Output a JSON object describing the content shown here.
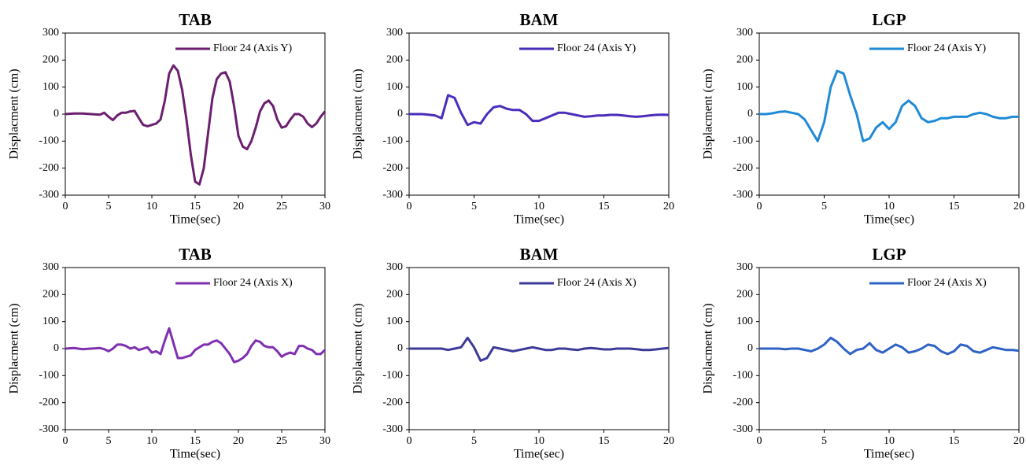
{
  "chart_data": [
    {
      "type": "line",
      "title": "TAB",
      "xlabel": "Time(sec)",
      "ylabel": "Displacment (cm)",
      "legend": "upper right",
      "x": [
        0,
        1,
        2,
        3,
        4,
        4.5,
        5,
        5.5,
        6,
        6.5,
        7,
        7.5,
        8,
        8.5,
        9,
        9.5,
        10,
        10.5,
        11,
        11.5,
        12,
        12.5,
        13,
        13.5,
        14,
        14.5,
        15,
        15.5,
        16,
        16.5,
        17,
        17.5,
        18,
        18.5,
        19,
        19.5,
        20,
        20.5,
        21,
        21.5,
        22,
        22.5,
        23,
        23.5,
        24,
        24.5,
        25,
        25.5,
        26,
        26.5,
        27,
        27.5,
        28,
        28.5,
        29,
        29.5,
        30
      ],
      "series": [
        {
          "name": "Floor 24 (Axis Y)",
          "color": "#6b1f6e",
          "values": [
            0,
            2,
            2,
            0,
            -2,
            5,
            -10,
            -22,
            -5,
            5,
            5,
            10,
            12,
            -15,
            -40,
            -45,
            -40,
            -35,
            -20,
            50,
            150,
            180,
            160,
            90,
            -20,
            -150,
            -250,
            -260,
            -200,
            -70,
            60,
            130,
            150,
            155,
            120,
            30,
            -80,
            -120,
            -130,
            -100,
            -50,
            10,
            40,
            50,
            30,
            -20,
            -50,
            -45,
            -20,
            0,
            0,
            -10,
            -35,
            -48,
            -35,
            -10,
            10
          ]
        }
      ],
      "xlim": [
        0,
        30
      ],
      "xticks": [
        0,
        5,
        10,
        15,
        20,
        25,
        30
      ],
      "ylim": [
        -300,
        300
      ],
      "yticks": [
        -300,
        -200,
        -100,
        0,
        100,
        200,
        300
      ]
    },
    {
      "type": "line",
      "title": "BAM",
      "xlabel": "Time(sec)",
      "ylabel": "Displacment (cm)",
      "legend": "upper right",
      "x": [
        0,
        0.5,
        1,
        1.5,
        2,
        2.5,
        3,
        3.5,
        4,
        4.5,
        5,
        5.5,
        6,
        6.5,
        7,
        7.5,
        8,
        8.5,
        9,
        9.5,
        10,
        10.5,
        11,
        11.5,
        12,
        12.5,
        13,
        13.5,
        14,
        14.5,
        15,
        15.5,
        16,
        16.5,
        17,
        17.5,
        18,
        18.5,
        19,
        19.5,
        20
      ],
      "series": [
        {
          "name": "Floor 24 (Axis Y)",
          "color": "#4a2dbb",
          "values": [
            0,
            0,
            0,
            -2,
            -5,
            -15,
            70,
            60,
            5,
            -40,
            -30,
            -35,
            0,
            25,
            30,
            20,
            15,
            15,
            0,
            -25,
            -25,
            -15,
            -5,
            5,
            5,
            0,
            -5,
            -10,
            -8,
            -5,
            -5,
            -3,
            -3,
            -5,
            -8,
            -10,
            -8,
            -5,
            -3,
            -2,
            -3
          ]
        }
      ],
      "xlim": [
        0,
        20
      ],
      "xticks": [
        0,
        5,
        10,
        15,
        20
      ],
      "ylim": [
        -300,
        300
      ],
      "yticks": [
        -300,
        -200,
        -100,
        0,
        100,
        200,
        300
      ]
    },
    {
      "type": "line",
      "title": "LGP",
      "xlabel": "Time(sec)",
      "ylabel": "Displacment (cm)",
      "legend": "upper right",
      "x": [
        0,
        0.5,
        1,
        1.5,
        2,
        2.5,
        3,
        3.5,
        4,
        4.5,
        5,
        5.5,
        6,
        6.5,
        7,
        7.5,
        8,
        8.5,
        9,
        9.5,
        10,
        10.5,
        11,
        11.5,
        12,
        12.5,
        13,
        13.5,
        14,
        14.5,
        15,
        15.5,
        16,
        16.5,
        17,
        17.5,
        18,
        18.5,
        19,
        19.5,
        20
      ],
      "series": [
        {
          "name": "Floor 24 (Axis Y)",
          "color": "#1f8ad6",
          "values": [
            0,
            0,
            3,
            8,
            10,
            5,
            0,
            -20,
            -60,
            -100,
            -30,
            100,
            160,
            150,
            70,
            0,
            -100,
            -90,
            -50,
            -30,
            -55,
            -30,
            30,
            50,
            30,
            -15,
            -30,
            -25,
            -15,
            -15,
            -10,
            -10,
            -10,
            0,
            5,
            0,
            -10,
            -15,
            -15,
            -10,
            -10
          ]
        }
      ],
      "xlim": [
        0,
        20
      ],
      "xticks": [
        0,
        5,
        10,
        15,
        20
      ],
      "ylim": [
        -300,
        300
      ],
      "yticks": [
        -300,
        -200,
        -100,
        0,
        100,
        200,
        300
      ]
    },
    {
      "type": "line",
      "title": "TAB",
      "xlabel": "Time(sec)",
      "ylabel": "Displacment (cm)",
      "legend": "upper right",
      "x": [
        0,
        1,
        2,
        3,
        4,
        4.5,
        5,
        5.5,
        6,
        6.5,
        7,
        7.5,
        8,
        8.5,
        9,
        9.5,
        10,
        10.5,
        11,
        11.5,
        12,
        12.5,
        13,
        13.5,
        14,
        14.5,
        15,
        15.5,
        16,
        16.5,
        17,
        17.5,
        18,
        18.5,
        19,
        19.5,
        20,
        20.5,
        21,
        21.5,
        22,
        22.5,
        23,
        23.5,
        24,
        24.5,
        25,
        25.5,
        26,
        26.5,
        27,
        27.5,
        28,
        28.5,
        29,
        29.5,
        30
      ],
      "series": [
        {
          "name": "Floor 24 (Axis X)",
          "color": "#7f2fb0",
          "values": [
            0,
            2,
            -2,
            0,
            2,
            -2,
            -10,
            0,
            15,
            15,
            10,
            0,
            5,
            -5,
            0,
            5,
            -15,
            -10,
            -20,
            30,
            75,
            20,
            -35,
            -35,
            -30,
            -25,
            -5,
            5,
            15,
            15,
            25,
            30,
            20,
            0,
            -20,
            -50,
            -45,
            -35,
            -20,
            10,
            30,
            25,
            10,
            5,
            5,
            -10,
            -30,
            -20,
            -15,
            -20,
            10,
            10,
            0,
            -5,
            -20,
            -20,
            -5
          ]
        }
      ],
      "xlim": [
        0,
        30
      ],
      "xticks": [
        0,
        5,
        10,
        15,
        20,
        25,
        30
      ],
      "ylim": [
        -300,
        300
      ],
      "yticks": [
        -300,
        -200,
        -100,
        0,
        100,
        200,
        300
      ]
    },
    {
      "type": "line",
      "title": "BAM",
      "xlabel": "Time(sec)",
      "ylabel": "Displacment (cm)",
      "legend": "upper right",
      "x": [
        0,
        0.5,
        1,
        1.5,
        2,
        2.5,
        3,
        3.5,
        4,
        4.5,
        5,
        5.5,
        6,
        6.5,
        7,
        7.5,
        8,
        8.5,
        9,
        9.5,
        10,
        10.5,
        11,
        11.5,
        12,
        12.5,
        13,
        13.5,
        14,
        14.5,
        15,
        15.5,
        16,
        16.5,
        17,
        17.5,
        18,
        18.5,
        19,
        19.5,
        20
      ],
      "series": [
        {
          "name": "Floor 24 (Axis X)",
          "color": "#3c3a98",
          "values": [
            0,
            0,
            0,
            0,
            0,
            0,
            -5,
            0,
            5,
            40,
            5,
            -45,
            -35,
            5,
            0,
            -5,
            -10,
            -5,
            0,
            5,
            0,
            -5,
            -5,
            0,
            0,
            -3,
            -5,
            0,
            2,
            0,
            -3,
            -3,
            0,
            0,
            0,
            -2,
            -5,
            -5,
            -3,
            0,
            2
          ]
        }
      ],
      "xlim": [
        0,
        20
      ],
      "xticks": [
        0,
        5,
        10,
        15,
        20
      ],
      "ylim": [
        -300,
        300
      ],
      "yticks": [
        -300,
        -200,
        -100,
        0,
        100,
        200,
        300
      ]
    },
    {
      "type": "line",
      "title": "LGP",
      "xlabel": "Time(sec)",
      "ylabel": "Displacment (cm)",
      "legend": "upper right",
      "x": [
        0,
        0.5,
        1,
        1.5,
        2,
        2.5,
        3,
        3.5,
        4,
        4.5,
        5,
        5.5,
        6,
        6.5,
        7,
        7.5,
        8,
        8.5,
        9,
        9.5,
        10,
        10.5,
        11,
        11.5,
        12,
        12.5,
        13,
        13.5,
        14,
        14.5,
        15,
        15.5,
        16,
        16.5,
        17,
        17.5,
        18,
        18.5,
        19,
        19.5,
        20
      ],
      "series": [
        {
          "name": "Floor 24 (Axis X)",
          "color": "#2e62c4",
          "values": [
            0,
            0,
            0,
            0,
            -2,
            0,
            0,
            -5,
            -10,
            0,
            15,
            40,
            25,
            0,
            -20,
            -5,
            0,
            20,
            -5,
            -15,
            0,
            15,
            5,
            -15,
            -10,
            0,
            15,
            10,
            -10,
            -20,
            -10,
            15,
            10,
            -10,
            -15,
            -5,
            5,
            0,
            -5,
            -5,
            -8
          ]
        }
      ],
      "xlim": [
        0,
        20
      ],
      "xticks": [
        0,
        5,
        10,
        15,
        20
      ],
      "ylim": [
        -300,
        300
      ],
      "yticks": [
        -300,
        -200,
        -100,
        0,
        100,
        200,
        300
      ]
    }
  ]
}
